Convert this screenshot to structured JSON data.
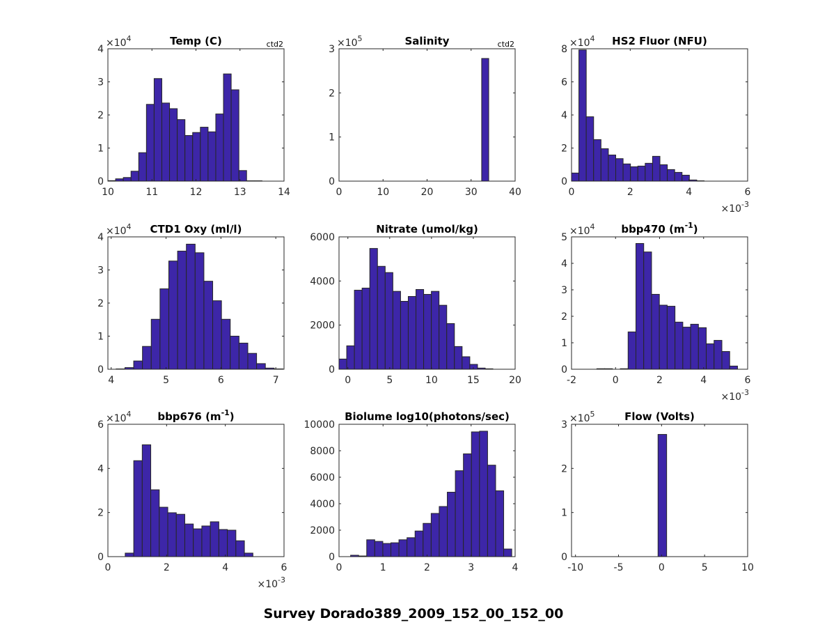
{
  "figure_title": "Survey Dorado389_2009_152_00_152_00",
  "colors": {
    "bar_fill": "#3d26a8",
    "bar_edge": "#262626",
    "axis": "#262626"
  },
  "chart_data": [
    {
      "type": "bar",
      "title": "Temp (C)",
      "title_sup": "",
      "title_suffix": "",
      "corner": "ctd2",
      "xlim": [
        10,
        14
      ],
      "xticks": [
        10,
        11,
        12,
        13,
        14
      ],
      "x_tick_labels": [
        "10",
        "11",
        "12",
        "13",
        "14"
      ],
      "x_exponent": "",
      "ylim": [
        0,
        40000
      ],
      "yticks": [
        0,
        10000,
        20000,
        30000,
        40000
      ],
      "y_tick_labels": [
        "0",
        "1",
        "2",
        "3",
        "4"
      ],
      "y_exponent": "4",
      "bin_start": 10.0,
      "bin_width": 0.175,
      "counts": [
        150,
        700,
        1100,
        3000,
        8600,
        23200,
        31000,
        23600,
        21900,
        18600,
        13800,
        14700,
        16300,
        14900,
        20300,
        32400,
        27600,
        3200,
        100,
        100
      ]
    },
    {
      "type": "bar",
      "title": "Salinity",
      "title_sup": "",
      "title_suffix": "",
      "corner": "ctd2",
      "xlim": [
        0,
        40
      ],
      "xticks": [
        0,
        10,
        20,
        30,
        40
      ],
      "x_tick_labels": [
        "0",
        "10",
        "20",
        "30",
        "40"
      ],
      "x_exponent": "",
      "ylim": [
        0,
        300000
      ],
      "yticks": [
        0,
        100000,
        200000,
        300000
      ],
      "y_tick_labels": [
        "0",
        "1",
        "2",
        "3"
      ],
      "y_exponent": "5",
      "bin_start": 32.4,
      "bin_width": 1.6,
      "counts": [
        278000
      ]
    },
    {
      "type": "bar",
      "title": "HS2 Fluor (NFU)",
      "title_sup": "",
      "title_suffix": "",
      "corner": "",
      "xlim": [
        0,
        6
      ],
      "xticks": [
        0,
        2,
        4,
        6
      ],
      "x_tick_labels": [
        "0",
        "2",
        "4",
        "6"
      ],
      "x_exponent": "-3",
      "ylim": [
        0,
        80000
      ],
      "yticks": [
        0,
        20000,
        40000,
        60000,
        80000
      ],
      "y_tick_labels": [
        "0",
        "2",
        "4",
        "6",
        "8"
      ],
      "y_exponent": "4",
      "bin_start": 0,
      "bin_width": 0.251,
      "counts": [
        4900,
        79300,
        38900,
        25100,
        19600,
        15800,
        13600,
        10400,
        8700,
        9100,
        10800,
        15000,
        9900,
        7000,
        5300,
        3600,
        700,
        200
      ]
    },
    {
      "type": "bar",
      "title": "CTD1 Oxy (ml/l)",
      "title_sup": "",
      "title_suffix": "",
      "corner": "",
      "xlim": [
        3.94,
        7.15
      ],
      "xticks": [
        4,
        5,
        6,
        7
      ],
      "x_tick_labels": [
        "4",
        "5",
        "6",
        "7"
      ],
      "x_exponent": "",
      "ylim": [
        0,
        40000
      ],
      "yticks": [
        0,
        10000,
        20000,
        30000,
        40000
      ],
      "y_tick_labels": [
        "0",
        "1",
        "2",
        "3",
        "4"
      ],
      "y_exponent": "4",
      "bin_start": 4.09,
      "bin_width": 0.16,
      "counts": [
        100,
        500,
        2500,
        6900,
        15100,
        24300,
        32700,
        35700,
        37800,
        35200,
        26600,
        20700,
        15100,
        10000,
        7900,
        4800,
        1700,
        350,
        100
      ]
    },
    {
      "type": "bar",
      "title": "Nitrate (umol/kg)",
      "title_sup": "",
      "title_suffix": "",
      "corner": "",
      "xlim": [
        -1.06,
        20
      ],
      "xticks": [
        0,
        5,
        10,
        15,
        20
      ],
      "x_tick_labels": [
        "0",
        "5",
        "10",
        "15",
        "20"
      ],
      "x_exponent": "",
      "ylim": [
        0,
        6000
      ],
      "yticks": [
        0,
        2000,
        4000,
        6000
      ],
      "y_tick_labels": [
        "0",
        "2000",
        "4000",
        "6000"
      ],
      "y_exponent": "",
      "bin_start": -1.06,
      "bin_width": 0.92,
      "counts": [
        462,
        1061,
        3583,
        3678,
        5475,
        4665,
        4382,
        3531,
        3079,
        3299,
        3615,
        3394,
        3531,
        2900,
        2070,
        1030,
        567,
        220,
        53,
        20
      ]
    },
    {
      "type": "bar",
      "title": "bbp470 (m",
      "title_sup": "-1",
      "title_suffix": ")",
      "corner": "",
      "xlim": [
        -2,
        6
      ],
      "xticks": [
        -2,
        0,
        2,
        4,
        6
      ],
      "x_tick_labels": [
        "-2",
        "0",
        "2",
        "4",
        "6"
      ],
      "x_exponent": "-3",
      "ylim": [
        0,
        50000
      ],
      "yticks": [
        0,
        10000,
        20000,
        30000,
        40000,
        50000
      ],
      "y_tick_labels": [
        "0",
        "1",
        "2",
        "3",
        "4",
        "5"
      ],
      "y_exponent": "4",
      "bin_start": -0.85,
      "bin_width": 0.355,
      "counts": [
        200,
        200,
        0,
        200,
        14100,
        47500,
        44300,
        28300,
        24200,
        23800,
        17800,
        15900,
        17000,
        15700,
        9600,
        10900,
        6700,
        1200
      ]
    },
    {
      "type": "bar",
      "title": "bbp676 (m",
      "title_sup": "-1",
      "title_suffix": ")",
      "corner": "",
      "xlim": [
        0,
        6
      ],
      "xticks": [
        0,
        2,
        4,
        6
      ],
      "x_tick_labels": [
        "0",
        "2",
        "4",
        "6"
      ],
      "x_exponent": "-3",
      "ylim": [
        0,
        60000
      ],
      "yticks": [
        0,
        20000,
        40000,
        60000
      ],
      "y_tick_labels": [
        "0",
        "2",
        "4",
        "6"
      ],
      "y_exponent": "4",
      "bin_start": 0.59,
      "bin_width": 0.29,
      "counts": [
        1600,
        43500,
        50700,
        30300,
        22400,
        19900,
        19200,
        14800,
        12600,
        13900,
        15800,
        12300,
        12000,
        7200,
        1600
      ]
    },
    {
      "type": "bar",
      "title": "Biolume log10(photons/sec)",
      "title_sup": "",
      "title_suffix": "",
      "corner": "",
      "xlim": [
        0,
        4
      ],
      "xticks": [
        0,
        1,
        2,
        3,
        4
      ],
      "x_tick_labels": [
        "0",
        "1",
        "2",
        "3",
        "4"
      ],
      "x_exponent": "",
      "ylim": [
        0,
        10000
      ],
      "yticks": [
        0,
        2000,
        4000,
        6000,
        8000,
        10000
      ],
      "y_tick_labels": [
        "0",
        "2000",
        "4000",
        "6000",
        "8000",
        "10000"
      ],
      "y_exponent": "",
      "bin_start": 0.263,
      "bin_width": 0.183,
      "counts": [
        105,
        50,
        1274,
        1152,
        995,
        1047,
        1274,
        1431,
        1937,
        2513,
        3264,
        3787,
        4869,
        6492,
        7766,
        9424,
        9476,
        6911,
        4974,
        576
      ]
    },
    {
      "type": "bar",
      "title": "Flow (Volts)",
      "title_sup": "",
      "title_suffix": "",
      "corner": "",
      "xlim": [
        -10.46,
        10
      ],
      "xticks": [
        -10,
        -5,
        0,
        5,
        10
      ],
      "x_tick_labels": [
        "-10",
        "-5",
        "0",
        "5",
        "10"
      ],
      "x_exponent": "",
      "ylim": [
        0,
        300000
      ],
      "yticks": [
        0,
        100000,
        200000,
        300000
      ],
      "y_tick_labels": [
        "0",
        "1",
        "2",
        "3"
      ],
      "y_exponent": "5",
      "bin_start": -0.41,
      "bin_width": 1.0,
      "counts": [
        277000
      ]
    }
  ]
}
